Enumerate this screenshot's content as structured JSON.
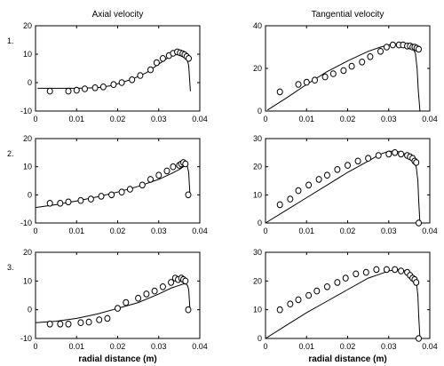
{
  "chart_data": [
    {
      "type": "line",
      "column_title": "Axial velocity",
      "row_label": "1.",
      "xlabel": "",
      "xlim": [
        0,
        0.04
      ],
      "ylim": [
        -10,
        20
      ],
      "xticks": [
        "0",
        "0.01",
        "0.02",
        "0.03",
        "0.04"
      ],
      "yticks": [
        "-10",
        "0",
        "10",
        "20"
      ],
      "series": [
        {
          "kind": "line",
          "x": [
            0.0005,
            0.005,
            0.01,
            0.015,
            0.018,
            0.021,
            0.024,
            0.027,
            0.03,
            0.032,
            0.034,
            0.035,
            0.036,
            0.0368,
            0.0373,
            0.0377
          ],
          "y": [
            -2,
            -2,
            -2,
            -1.8,
            -1.2,
            0,
            1.5,
            3.5,
            6.5,
            8.5,
            10.5,
            11,
            10.5,
            9,
            6,
            -3
          ]
        },
        {
          "kind": "scatter",
          "x": [
            0.0035,
            0.008,
            0.01,
            0.012,
            0.0145,
            0.0165,
            0.019,
            0.021,
            0.0235,
            0.0255,
            0.028,
            0.0295,
            0.031,
            0.0325,
            0.0335,
            0.0345,
            0.0352,
            0.0358,
            0.0363,
            0.0368,
            0.0373
          ],
          "y": [
            -3,
            -3,
            -2.7,
            -2.2,
            -1.8,
            -1.5,
            -0.7,
            0,
            1,
            2.5,
            4.5,
            7,
            8.5,
            9.5,
            10.3,
            10.8,
            10.5,
            10.2,
            9.8,
            9.2,
            8.5
          ]
        }
      ]
    },
    {
      "type": "line",
      "column_title": "Tangential velocity",
      "row_label": "",
      "xlabel": "",
      "xlim": [
        0,
        0.04
      ],
      "ylim": [
        0,
        40
      ],
      "xticks": [
        "0",
        "0.01",
        "0.02",
        "0.03",
        "0.04"
      ],
      "yticks": [
        "0",
        "20",
        "40"
      ],
      "series": [
        {
          "kind": "line",
          "x": [
            0.0005,
            0.005,
            0.01,
            0.015,
            0.02,
            0.025,
            0.028,
            0.03,
            0.032,
            0.034,
            0.035,
            0.036,
            0.0365,
            0.0369,
            0.0372,
            0.0376
          ],
          "y": [
            0.5,
            6,
            12.5,
            18.5,
            23.5,
            28,
            30,
            31,
            31.5,
            31,
            30,
            29,
            27,
            20,
            10,
            0
          ]
        },
        {
          "kind": "scatter",
          "x": [
            0.0035,
            0.008,
            0.01,
            0.012,
            0.0145,
            0.0165,
            0.019,
            0.021,
            0.0235,
            0.0255,
            0.028,
            0.0295,
            0.031,
            0.0325,
            0.0335,
            0.0345,
            0.0352,
            0.0358,
            0.0363,
            0.0368,
            0.0373
          ],
          "y": [
            9,
            12.5,
            13.5,
            14.5,
            16,
            17.5,
            19,
            21,
            23,
            25.5,
            28,
            30,
            31,
            31,
            31,
            30.5,
            30.5,
            30,
            30,
            29.5,
            29
          ]
        }
      ]
    },
    {
      "type": "line",
      "column_title": "",
      "row_label": "2.",
      "xlabel": "",
      "xlim": [
        0,
        0.04
      ],
      "ylim": [
        -10,
        20
      ],
      "xticks": [
        "0",
        "0.01",
        "0.02",
        "0.03",
        "0.04"
      ],
      "yticks": [
        "-10",
        "0",
        "10",
        "20"
      ],
      "series": [
        {
          "kind": "line",
          "x": [
            0,
            0.005,
            0.01,
            0.015,
            0.02,
            0.025,
            0.03,
            0.033,
            0.035,
            0.036,
            0.0366,
            0.037,
            0.0373,
            0.0376
          ],
          "y": [
            -4.5,
            -3.5,
            -2.2,
            -0.7,
            1,
            3,
            5.5,
            7.5,
            9,
            10,
            10.5,
            10,
            8,
            0
          ]
        },
        {
          "kind": "scatter",
          "x": [
            0.0035,
            0.006,
            0.008,
            0.011,
            0.0135,
            0.016,
            0.0185,
            0.021,
            0.023,
            0.026,
            0.028,
            0.03,
            0.032,
            0.0335,
            0.035,
            0.0355,
            0.036,
            0.0365,
            0.0372
          ],
          "y": [
            -3,
            -3,
            -2.5,
            -2,
            -1.5,
            -0.5,
            0,
            1,
            2,
            3.5,
            5.5,
            7,
            8.5,
            10,
            10.5,
            11,
            11.5,
            11,
            0
          ]
        }
      ]
    },
    {
      "type": "line",
      "column_title": "",
      "row_label": "",
      "xlabel": "",
      "xlim": [
        0,
        0.04
      ],
      "ylim": [
        0,
        30
      ],
      "xticks": [
        "0",
        "0.01",
        "0.02",
        "0.03",
        "0.04"
      ],
      "yticks": [
        "0",
        "10",
        "20",
        "30"
      ],
      "series": [
        {
          "kind": "line",
          "x": [
            0,
            0.005,
            0.01,
            0.015,
            0.02,
            0.025,
            0.028,
            0.03,
            0.032,
            0.034,
            0.035,
            0.036,
            0.0367,
            0.0371,
            0.0373,
            0.0376
          ],
          "y": [
            0,
            4.5,
            9,
            13.5,
            18,
            22,
            24.5,
            25.5,
            25.5,
            24.5,
            23.5,
            22,
            20,
            15,
            8,
            0
          ]
        },
        {
          "kind": "scatter",
          "x": [
            0.0035,
            0.006,
            0.008,
            0.0105,
            0.013,
            0.015,
            0.0175,
            0.02,
            0.0225,
            0.025,
            0.0275,
            0.03,
            0.0315,
            0.033,
            0.0345,
            0.0352,
            0.0358,
            0.0363,
            0.0367,
            0.0373
          ],
          "y": [
            6.5,
            8.5,
            11.5,
            13.5,
            15.5,
            17,
            19,
            20.5,
            22,
            23,
            24,
            24.5,
            25,
            24.5,
            24,
            23.5,
            23,
            22,
            21.5,
            0
          ]
        }
      ]
    },
    {
      "type": "line",
      "column_title": "",
      "row_label": "3.",
      "xlabel": "radial distance (m)",
      "xlim": [
        0,
        0.04
      ],
      "ylim": [
        -10,
        20
      ],
      "xticks": [
        "0",
        "0.01",
        "0.02",
        "0.03",
        "0.04"
      ],
      "yticks": [
        "-10",
        "0",
        "10",
        "20"
      ],
      "series": [
        {
          "kind": "line",
          "x": [
            0,
            0.005,
            0.01,
            0.015,
            0.02,
            0.025,
            0.03,
            0.033,
            0.035,
            0.036,
            0.0366,
            0.037,
            0.0373,
            0.0376
          ],
          "y": [
            -4.5,
            -4,
            -3,
            -1.5,
            0.5,
            2.5,
            5.5,
            7.5,
            8.5,
            9,
            9,
            8.5,
            7,
            0
          ]
        },
        {
          "kind": "scatter",
          "x": [
            0.0035,
            0.006,
            0.008,
            0.011,
            0.013,
            0.0155,
            0.0175,
            0.02,
            0.022,
            0.025,
            0.027,
            0.029,
            0.031,
            0.033,
            0.034,
            0.0347,
            0.0355,
            0.036,
            0.0365,
            0.0372
          ],
          "y": [
            -5,
            -5,
            -5,
            -4.5,
            -4.3,
            -3.5,
            -3,
            0.5,
            2.5,
            4,
            5.5,
            6.5,
            8,
            9.5,
            11,
            10.5,
            11,
            10.5,
            10,
            0
          ]
        }
      ]
    },
    {
      "type": "line",
      "column_title": "",
      "row_label": "",
      "xlabel": "radial distance (m)",
      "xlim": [
        0,
        0.04
      ],
      "ylim": [
        0,
        30
      ],
      "xticks": [
        "0",
        "0.01",
        "0.02",
        "0.03",
        "0.04"
      ],
      "yticks": [
        "0",
        "10",
        "20",
        "30"
      ],
      "series": [
        {
          "kind": "line",
          "x": [
            0,
            0.005,
            0.01,
            0.015,
            0.02,
            0.025,
            0.028,
            0.03,
            0.032,
            0.034,
            0.035,
            0.036,
            0.0367,
            0.0371,
            0.0373,
            0.0376
          ],
          "y": [
            0,
            4.5,
            9,
            13,
            17,
            21,
            22.5,
            23.5,
            24,
            23.5,
            22.5,
            21.5,
            20,
            15,
            8,
            0
          ]
        },
        {
          "kind": "scatter",
          "x": [
            0.0035,
            0.006,
            0.008,
            0.0105,
            0.0125,
            0.015,
            0.0175,
            0.0195,
            0.022,
            0.0245,
            0.027,
            0.0295,
            0.0315,
            0.033,
            0.0345,
            0.0352,
            0.0358,
            0.0363,
            0.0367,
            0.0373
          ],
          "y": [
            10,
            12,
            13.5,
            15,
            16.5,
            18,
            19.5,
            21,
            22.5,
            23,
            24,
            24,
            24,
            23.5,
            23,
            22,
            21,
            20.5,
            19.5,
            0
          ]
        }
      ]
    }
  ]
}
